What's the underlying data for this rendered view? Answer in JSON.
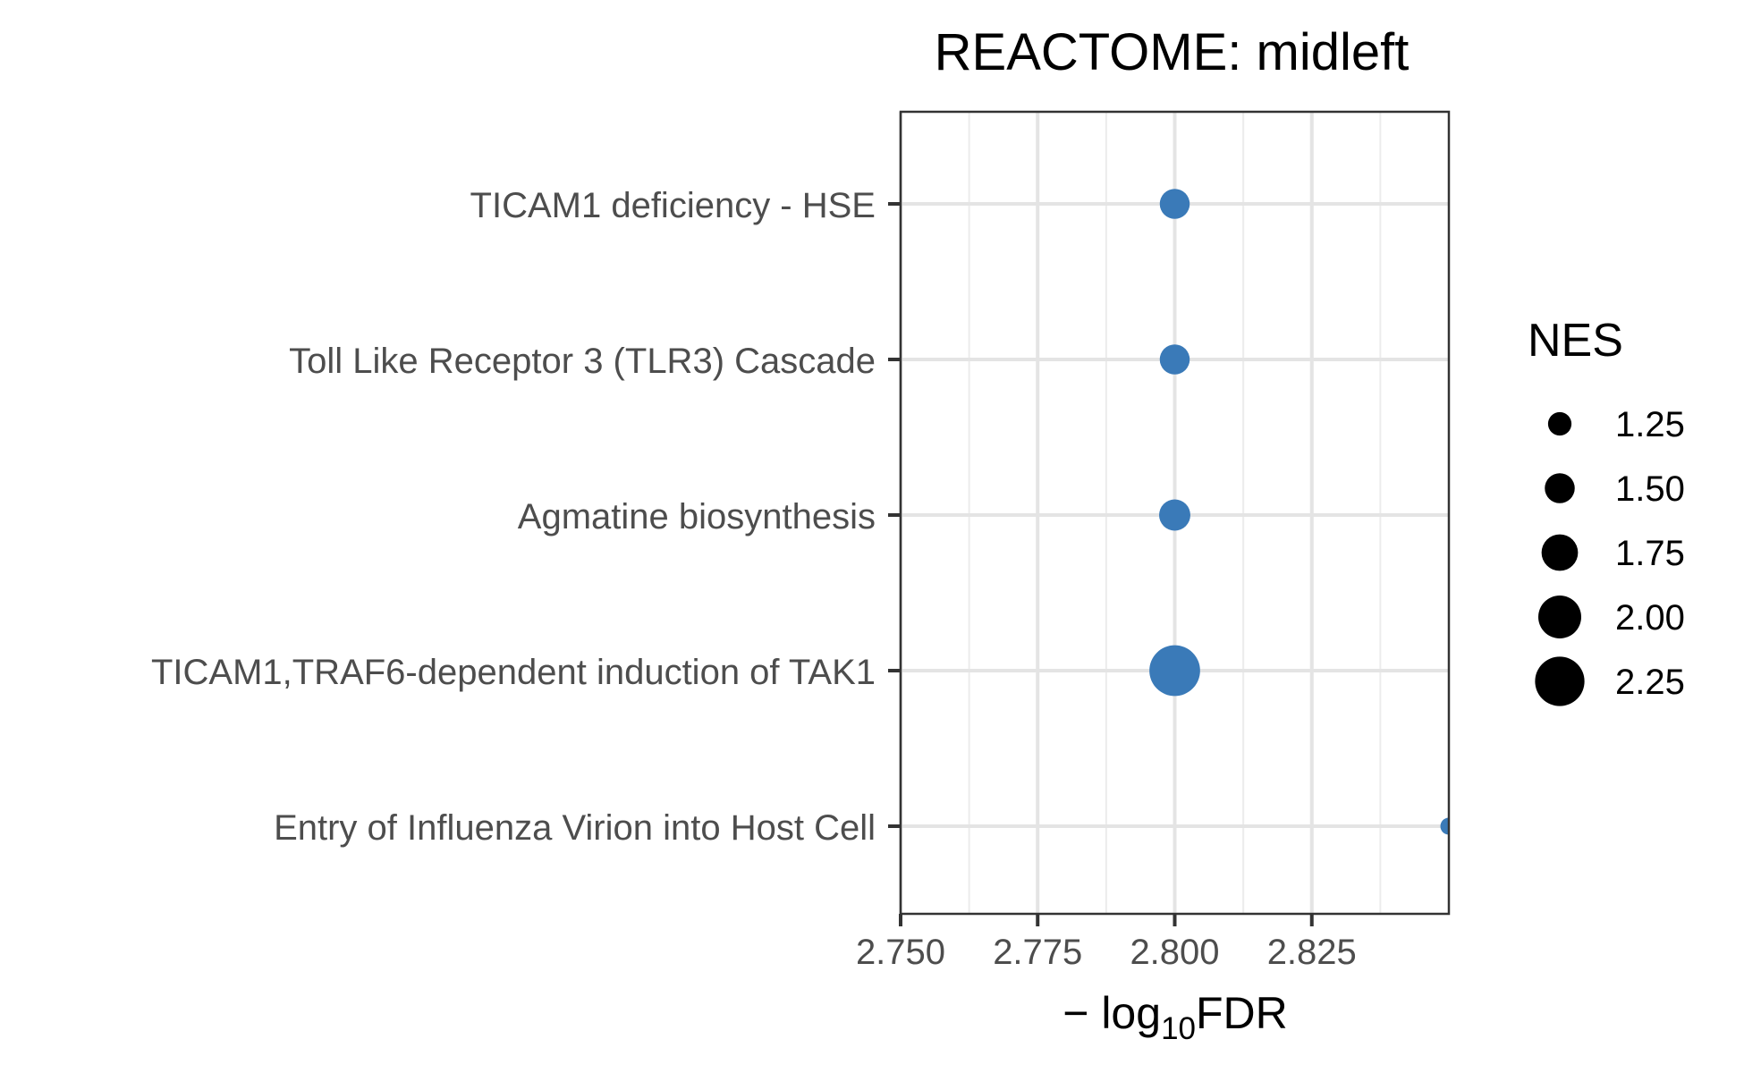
{
  "chart_data": {
    "type": "scatter",
    "title": "REACTOME: midleft",
    "xlabel_parts": {
      "prefix": "− log",
      "subscript": "10",
      "suffix": "FDR"
    },
    "xlim": [
      2.75,
      2.85
    ],
    "x_ticks": [
      2.75,
      2.775,
      2.8,
      2.825
    ],
    "x_tick_labels": [
      "2.750",
      "2.775",
      "2.800",
      "2.825"
    ],
    "x_minor_ticks": [
      2.7625,
      2.7875,
      2.8125,
      2.8375,
      2.85
    ],
    "categories": [
      "TICAM1 deficiency - HSE",
      "Toll Like Receptor 3 (TLR3) Cascade",
      "Agmatine biosynthesis",
      "TICAM1,TRAF6-dependent induction of TAK1",
      "Entry of Influenza Virion into Host Cell"
    ],
    "points": [
      {
        "label": "TICAM1 deficiency - HSE",
        "x": 2.8,
        "nes": 1.5
      },
      {
        "label": "Toll Like Receptor 3 (TLR3) Cascade",
        "x": 2.8,
        "nes": 1.5
      },
      {
        "label": "Agmatine biosynthesis",
        "x": 2.8,
        "nes": 1.55
      },
      {
        "label": "TICAM1,TRAF6-dependent induction of TAK1",
        "x": 2.8,
        "nes": 2.3
      },
      {
        "label": "Entry of Influenza Virion into Host Cell",
        "x": 2.85,
        "nes": 1.0
      }
    ],
    "point_color": "#3a7ab8",
    "legend": {
      "title": "NES",
      "position": "right",
      "entries": [
        {
          "label": "1.25",
          "value": 1.25
        },
        {
          "label": "1.50",
          "value": 1.5
        },
        {
          "label": "1.75",
          "value": 1.75
        },
        {
          "label": "2.00",
          "value": 2.0
        },
        {
          "label": "2.25",
          "value": 2.25
        }
      ]
    },
    "grid": true
  }
}
